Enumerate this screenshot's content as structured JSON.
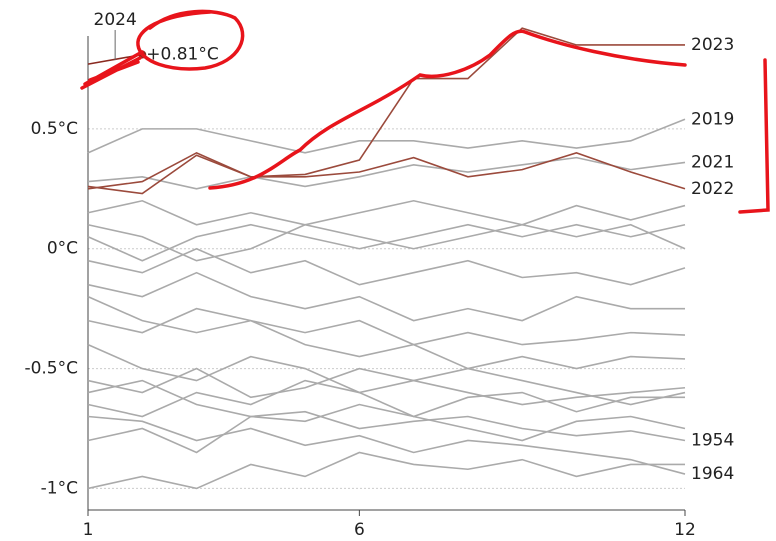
{
  "chart_data": {
    "type": "line",
    "x": [
      1,
      2,
      3,
      4,
      5,
      6,
      7,
      8,
      9,
      10,
      11,
      12
    ],
    "xlim": [
      1,
      12
    ],
    "xticks": [
      1,
      6,
      12
    ],
    "ylim": [
      -1.09,
      0.95
    ],
    "yticks": [
      {
        "value": -1,
        "label": "-1°C"
      },
      {
        "value": -0.5,
        "label": "-0.5°C"
      },
      {
        "value": 0,
        "label": "0°C"
      },
      {
        "value": 0.5,
        "label": "0.5°C"
      }
    ],
    "grid": true,
    "series": [
      {
        "values": [
          -0.55,
          -0.6,
          -0.5,
          -0.62,
          -0.58,
          -0.5,
          -0.55,
          -0.6,
          -0.65,
          -0.62,
          -0.6,
          -0.58
        ],
        "color": "#aaaaaa"
      },
      {
        "values": [
          -0.3,
          -0.35,
          -0.25,
          -0.3,
          -0.4,
          -0.45,
          -0.4,
          -0.5,
          -0.45,
          -0.5,
          -0.45,
          -0.46
        ],
        "color": "#aaaaaa"
      },
      {
        "values": [
          0.1,
          0.05,
          -0.05,
          0.0,
          0.1,
          0.05,
          0.0,
          0.05,
          0.1,
          0.05,
          0.1,
          0.0
        ],
        "color": "#aaaaaa"
      },
      {
        "values": [
          -0.15,
          -0.2,
          -0.1,
          -0.2,
          -0.25,
          -0.2,
          -0.3,
          -0.25,
          -0.3,
          -0.2,
          -0.25,
          -0.25
        ],
        "color": "#aaaaaa"
      },
      {
        "values": [
          -0.8,
          -0.75,
          -0.85,
          -0.7,
          -0.72,
          -0.65,
          -0.7,
          -0.75,
          -0.8,
          -0.72,
          -0.7,
          -0.75
        ],
        "color": "#aaaaaa"
      },
      {
        "values": [
          -0.4,
          -0.5,
          -0.55,
          -0.45,
          -0.5,
          -0.6,
          -0.55,
          -0.5,
          -0.55,
          -0.6,
          -0.65,
          -0.6
        ],
        "color": "#aaaaaa"
      },
      {
        "values": [
          0.15,
          0.2,
          0.1,
          0.15,
          0.1,
          0.15,
          0.2,
          0.15,
          0.1,
          0.18,
          0.12,
          0.18
        ],
        "color": "#aaaaaa"
      },
      {
        "values": [
          -0.05,
          -0.1,
          0.0,
          -0.1,
          -0.05,
          -0.15,
          -0.1,
          -0.05,
          -0.12,
          -0.1,
          -0.15,
          -0.08
        ],
        "color": "#aaaaaa"
      },
      {
        "values": [
          -0.65,
          -0.7,
          -0.6,
          -0.65,
          -0.55,
          -0.6,
          -0.7,
          -0.62,
          -0.6,
          -0.68,
          -0.62,
          -0.62
        ],
        "color": "#aaaaaa"
      },
      {
        "values": [
          -1.0,
          -0.95,
          -1.0,
          -0.9,
          -0.95,
          -0.85,
          -0.9,
          -0.92,
          -0.88,
          -0.95,
          -0.9,
          -0.9
        ],
        "color": "#aaaaaa"
      },
      {
        "values": [
          -0.2,
          -0.3,
          -0.35,
          -0.3,
          -0.35,
          -0.3,
          -0.4,
          -0.35,
          -0.4,
          -0.38,
          -0.35,
          -0.36
        ],
        "color": "#aaaaaa"
      },
      {
        "values": [
          0.05,
          -0.05,
          0.05,
          0.1,
          0.05,
          0.0,
          0.05,
          0.1,
          0.05,
          0.1,
          0.05,
          0.1
        ],
        "color": "#aaaaaa"
      },
      {
        "name": "2019",
        "values": [
          0.4,
          0.5,
          0.5,
          0.45,
          0.4,
          0.45,
          0.45,
          0.42,
          0.45,
          0.42,
          0.45,
          0.54
        ],
        "color": "#aaaaaa"
      },
      {
        "name": "2021",
        "values": [
          0.28,
          0.3,
          0.25,
          0.3,
          0.26,
          0.3,
          0.35,
          0.32,
          0.35,
          0.38,
          0.33,
          0.36
        ],
        "color": "#aaaaaa"
      },
      {
        "name": "1954",
        "values": [
          -0.6,
          -0.55,
          -0.65,
          -0.7,
          -0.68,
          -0.75,
          -0.72,
          -0.7,
          -0.75,
          -0.78,
          -0.76,
          -0.8
        ],
        "color": "#aaaaaa"
      },
      {
        "name": "1964",
        "values": [
          -0.7,
          -0.72,
          -0.8,
          -0.75,
          -0.82,
          -0.78,
          -0.85,
          -0.8,
          -0.82,
          -0.85,
          -0.88,
          -0.94
        ],
        "color": "#aaaaaa"
      },
      {
        "name": "2022",
        "values": [
          0.25,
          0.28,
          0.4,
          0.3,
          0.3,
          0.32,
          0.38,
          0.3,
          0.33,
          0.4,
          0.32,
          0.25
        ],
        "color": "#9b4a3c"
      },
      {
        "name": "2023",
        "values": [
          0.26,
          0.23,
          0.39,
          0.3,
          0.31,
          0.37,
          0.71,
          0.71,
          0.92,
          0.85,
          0.85,
          0.85
        ],
        "color": "#9b4a3c"
      },
      {
        "name": "2024",
        "values": [
          0.77,
          0.81,
          null,
          null,
          null,
          null,
          null,
          null,
          null,
          null,
          null,
          null
        ],
        "value_labels": [
          null,
          "+0.81°C"
        ],
        "color": "#8a2a20"
      }
    ]
  }
}
